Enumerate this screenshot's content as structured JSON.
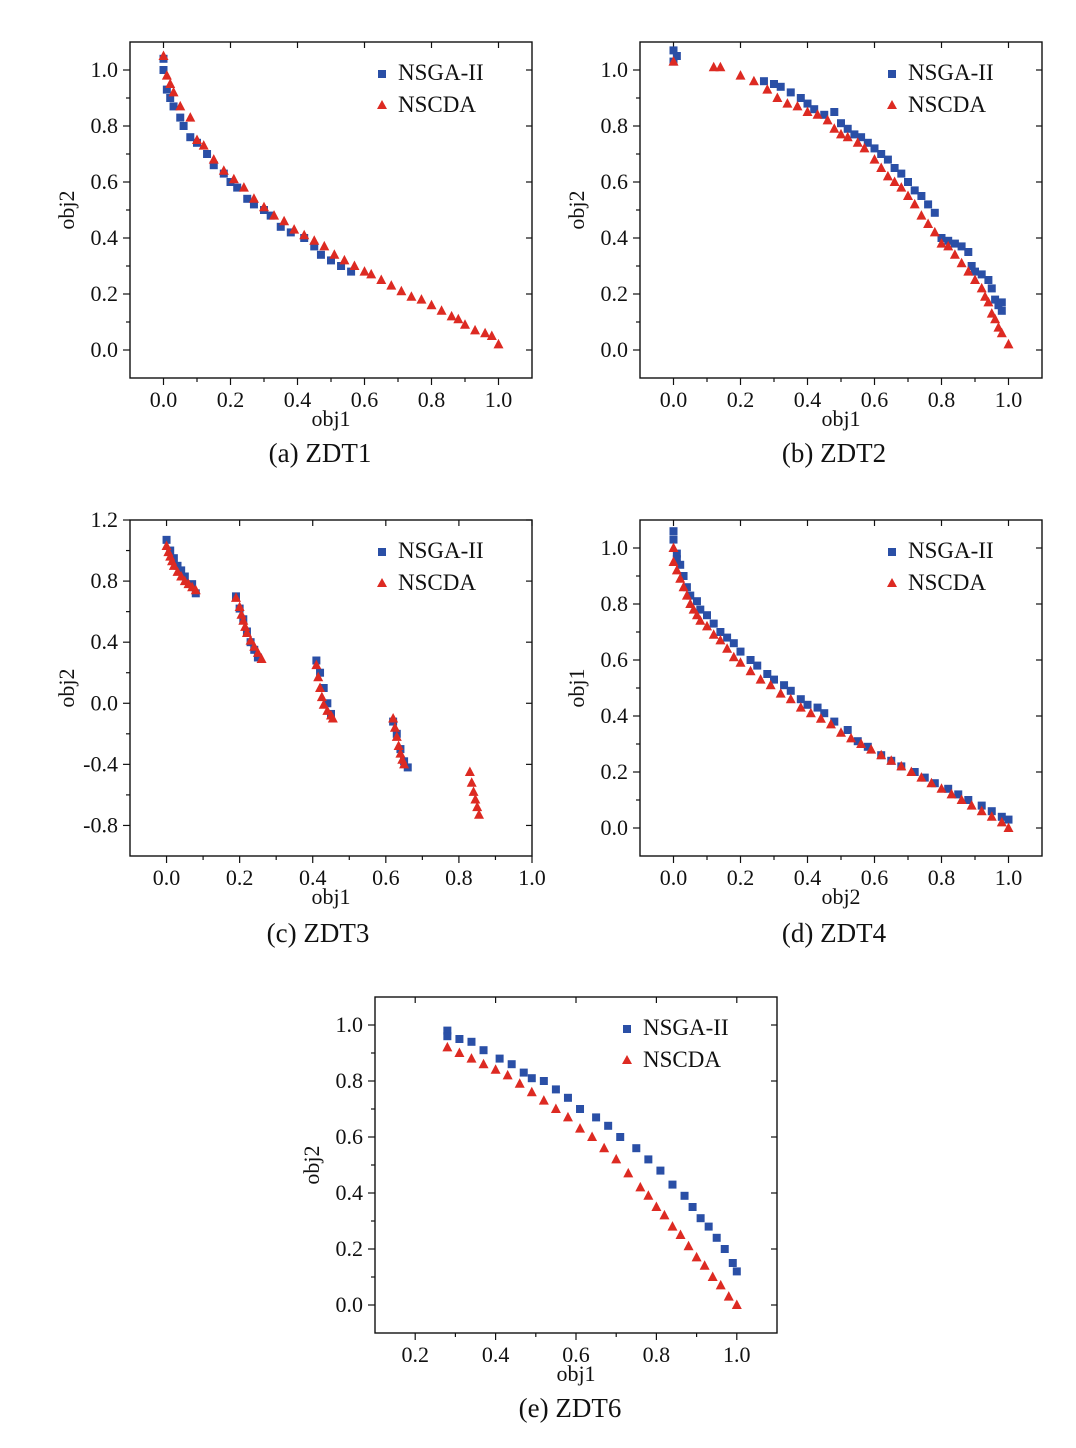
{
  "colors": {
    "nsga": "#2a4fa6",
    "nscda": "#dd2a22"
  },
  "chart_data": [
    {
      "id": "zdt1",
      "type": "scatter",
      "caption": "(a) ZDT1",
      "xlabel": "obj1",
      "ylabel": "obj2",
      "xlim": [
        -0.1,
        1.1
      ],
      "ylim": [
        -0.1,
        1.1
      ],
      "xticks": [
        "0.0",
        "0.2",
        "0.4",
        "0.6",
        "0.8",
        "1.0"
      ],
      "yticks": [
        "0.0",
        "0.2",
        "0.4",
        "0.6",
        "0.8",
        "1.0"
      ],
      "legend": [
        "NSGA-II",
        "NSCDA"
      ],
      "legend_position": "top-right",
      "series": [
        {
          "name": "NSGA-II",
          "marker": "square",
          "color": "#2a4fa6",
          "x": [
            0.0,
            0.0,
            0.01,
            0.02,
            0.03,
            0.05,
            0.06,
            0.08,
            0.1,
            0.13,
            0.15,
            0.18,
            0.2,
            0.22,
            0.25,
            0.27,
            0.3,
            0.32,
            0.35,
            0.38,
            0.42,
            0.45,
            0.47,
            0.5,
            0.53,
            0.56
          ],
          "y": [
            1.04,
            1.0,
            0.93,
            0.9,
            0.87,
            0.83,
            0.8,
            0.76,
            0.74,
            0.7,
            0.66,
            0.63,
            0.6,
            0.58,
            0.54,
            0.52,
            0.5,
            0.48,
            0.44,
            0.42,
            0.4,
            0.37,
            0.34,
            0.32,
            0.3,
            0.28
          ]
        },
        {
          "name": "NSCDA",
          "marker": "triangle",
          "color": "#dd2a22",
          "x": [
            0.0,
            0.01,
            0.02,
            0.03,
            0.05,
            0.08,
            0.1,
            0.12,
            0.15,
            0.18,
            0.21,
            0.24,
            0.27,
            0.3,
            0.33,
            0.36,
            0.39,
            0.42,
            0.45,
            0.48,
            0.51,
            0.54,
            0.57,
            0.6,
            0.62,
            0.65,
            0.68,
            0.71,
            0.74,
            0.77,
            0.8,
            0.83,
            0.86,
            0.88,
            0.9,
            0.93,
            0.96,
            0.98,
            1.0
          ],
          "y": [
            1.05,
            0.98,
            0.95,
            0.92,
            0.87,
            0.83,
            0.75,
            0.73,
            0.68,
            0.64,
            0.61,
            0.58,
            0.54,
            0.51,
            0.48,
            0.46,
            0.43,
            0.41,
            0.39,
            0.37,
            0.34,
            0.32,
            0.3,
            0.28,
            0.27,
            0.25,
            0.23,
            0.21,
            0.19,
            0.18,
            0.16,
            0.14,
            0.12,
            0.11,
            0.09,
            0.07,
            0.06,
            0.05,
            0.02
          ]
        }
      ]
    },
    {
      "id": "zdt2",
      "type": "scatter",
      "caption": "(b) ZDT2",
      "xlabel": "obj1",
      "ylabel": "obj2",
      "xlim": [
        -0.1,
        1.1
      ],
      "ylim": [
        -0.1,
        1.1
      ],
      "xticks": [
        "0.0",
        "0.2",
        "0.4",
        "0.6",
        "0.8",
        "1.0"
      ],
      "yticks": [
        "0.0",
        "0.2",
        "0.4",
        "0.6",
        "0.8",
        "1.0"
      ],
      "legend": [
        "NSGA-II",
        "NSCDA"
      ],
      "legend_position": "top-right",
      "series": [
        {
          "name": "NSGA-II",
          "marker": "square",
          "color": "#2a4fa6",
          "x": [
            0.0,
            0.01,
            0.0,
            0.27,
            0.3,
            0.32,
            0.35,
            0.38,
            0.4,
            0.42,
            0.45,
            0.48,
            0.5,
            0.52,
            0.54,
            0.56,
            0.58,
            0.6,
            0.62,
            0.64,
            0.66,
            0.68,
            0.7,
            0.72,
            0.74,
            0.76,
            0.78,
            0.8,
            0.82,
            0.84,
            0.86,
            0.88,
            0.89,
            0.9,
            0.92,
            0.94,
            0.95,
            0.96,
            0.97,
            0.98,
            0.98
          ],
          "y": [
            1.07,
            1.05,
            1.03,
            0.96,
            0.95,
            0.94,
            0.92,
            0.9,
            0.88,
            0.86,
            0.84,
            0.85,
            0.81,
            0.79,
            0.77,
            0.76,
            0.74,
            0.72,
            0.7,
            0.68,
            0.65,
            0.63,
            0.6,
            0.57,
            0.55,
            0.52,
            0.49,
            0.4,
            0.39,
            0.38,
            0.37,
            0.35,
            0.3,
            0.28,
            0.27,
            0.25,
            0.22,
            0.18,
            0.16,
            0.14,
            0.17
          ]
        },
        {
          "name": "NSCDA",
          "marker": "triangle",
          "color": "#dd2a22",
          "x": [
            0.0,
            0.12,
            0.14,
            0.2,
            0.24,
            0.28,
            0.31,
            0.34,
            0.37,
            0.4,
            0.43,
            0.46,
            0.48,
            0.5,
            0.52,
            0.55,
            0.57,
            0.6,
            0.62,
            0.64,
            0.66,
            0.68,
            0.7,
            0.72,
            0.74,
            0.76,
            0.78,
            0.8,
            0.82,
            0.84,
            0.86,
            0.88,
            0.9,
            0.92,
            0.93,
            0.94,
            0.95,
            0.96,
            0.97,
            0.98,
            1.0
          ],
          "y": [
            1.03,
            1.01,
            1.01,
            0.98,
            0.96,
            0.93,
            0.9,
            0.88,
            0.87,
            0.85,
            0.84,
            0.82,
            0.79,
            0.77,
            0.76,
            0.74,
            0.72,
            0.68,
            0.65,
            0.62,
            0.6,
            0.58,
            0.55,
            0.52,
            0.48,
            0.45,
            0.42,
            0.38,
            0.37,
            0.34,
            0.31,
            0.28,
            0.25,
            0.22,
            0.19,
            0.17,
            0.13,
            0.11,
            0.08,
            0.06,
            0.02
          ]
        }
      ]
    },
    {
      "id": "zdt3",
      "type": "scatter",
      "caption": "(c) ZDT3",
      "xlabel": "obj1",
      "ylabel": "obj2",
      "xlim": [
        -0.1,
        1.0
      ],
      "ylim": [
        -1.0,
        1.2
      ],
      "xticks": [
        "0.0",
        "0.2",
        "0.4",
        "0.6",
        "0.8",
        "1.0"
      ],
      "yticks": [
        "-0.8",
        "-0.4",
        "0.0",
        "0.4",
        "0.8",
        "1.2"
      ],
      "legend": [
        "NSGA-II",
        "NSCDA"
      ],
      "legend_position": "top-right",
      "series": [
        {
          "name": "NSGA-II",
          "marker": "square",
          "color": "#2a4fa6",
          "x": [
            0.0,
            0.01,
            0.02,
            0.03,
            0.04,
            0.05,
            0.07,
            0.08,
            0.19,
            0.2,
            0.21,
            0.22,
            0.23,
            0.24,
            0.25,
            0.41,
            0.42,
            0.43,
            0.44,
            0.45,
            0.62,
            0.63,
            0.64,
            0.65,
            0.66
          ],
          "y": [
            1.07,
            1.0,
            0.95,
            0.9,
            0.87,
            0.83,
            0.78,
            0.72,
            0.7,
            0.62,
            0.55,
            0.47,
            0.4,
            0.35,
            0.3,
            0.28,
            0.2,
            0.1,
            0.0,
            -0.07,
            -0.12,
            -0.2,
            -0.3,
            -0.38,
            -0.42
          ]
        },
        {
          "name": "NSCDA",
          "marker": "triangle",
          "color": "#dd2a22",
          "x": [
            0.0,
            0.005,
            0.01,
            0.015,
            0.02,
            0.03,
            0.04,
            0.05,
            0.06,
            0.07,
            0.08,
            0.19,
            0.2,
            0.205,
            0.21,
            0.215,
            0.22,
            0.23,
            0.24,
            0.25,
            0.26,
            0.41,
            0.415,
            0.42,
            0.425,
            0.43,
            0.44,
            0.45,
            0.455,
            0.62,
            0.625,
            0.63,
            0.635,
            0.64,
            0.645,
            0.65,
            0.83,
            0.835,
            0.84,
            0.845,
            0.85,
            0.855
          ],
          "y": [
            1.03,
            0.99,
            0.96,
            0.93,
            0.9,
            0.86,
            0.83,
            0.8,
            0.78,
            0.76,
            0.74,
            0.69,
            0.63,
            0.58,
            0.54,
            0.5,
            0.46,
            0.41,
            0.37,
            0.33,
            0.29,
            0.25,
            0.17,
            0.1,
            0.04,
            -0.01,
            -0.05,
            -0.08,
            -0.1,
            -0.1,
            -0.16,
            -0.22,
            -0.28,
            -0.33,
            -0.37,
            -0.4,
            -0.45,
            -0.52,
            -0.58,
            -0.63,
            -0.68,
            -0.73
          ]
        }
      ]
    },
    {
      "id": "zdt4",
      "type": "scatter",
      "caption": "(d) ZDT4",
      "xlabel": "obj2",
      "ylabel": "obj1",
      "xlim": [
        -0.1,
        1.1
      ],
      "ylim": [
        -0.1,
        1.1
      ],
      "xticks": [
        "0.0",
        "0.2",
        "0.4",
        "0.6",
        "0.8",
        "1.0"
      ],
      "yticks": [
        "0.0",
        "0.2",
        "0.4",
        "0.6",
        "0.8",
        "1.0"
      ],
      "legend": [
        "NSGA-II",
        "NSCDA"
      ],
      "legend_position": "top-right",
      "series": [
        {
          "name": "NSGA-II",
          "marker": "square",
          "color": "#2a4fa6",
          "x": [
            0.0,
            0.0,
            0.01,
            0.01,
            0.02,
            0.03,
            0.04,
            0.05,
            0.07,
            0.08,
            0.1,
            0.12,
            0.14,
            0.16,
            0.18,
            0.2,
            0.23,
            0.25,
            0.28,
            0.3,
            0.33,
            0.35,
            0.38,
            0.4,
            0.43,
            0.45,
            0.48,
            0.52,
            0.55,
            0.58,
            0.62,
            0.65,
            0.68,
            0.72,
            0.75,
            0.78,
            0.82,
            0.85,
            0.88,
            0.92,
            0.95,
            0.98,
            1.0
          ],
          "y": [
            1.06,
            1.03,
            0.98,
            0.96,
            0.94,
            0.9,
            0.86,
            0.83,
            0.81,
            0.78,
            0.76,
            0.73,
            0.7,
            0.68,
            0.66,
            0.63,
            0.6,
            0.58,
            0.55,
            0.53,
            0.51,
            0.49,
            0.46,
            0.44,
            0.43,
            0.41,
            0.38,
            0.35,
            0.31,
            0.29,
            0.26,
            0.24,
            0.22,
            0.2,
            0.18,
            0.16,
            0.14,
            0.12,
            0.1,
            0.08,
            0.06,
            0.04,
            0.03
          ]
        },
        {
          "name": "NSCDA",
          "marker": "triangle",
          "color": "#dd2a22",
          "x": [
            0.0,
            0.0,
            0.01,
            0.02,
            0.03,
            0.04,
            0.05,
            0.06,
            0.07,
            0.08,
            0.1,
            0.12,
            0.14,
            0.16,
            0.18,
            0.2,
            0.23,
            0.26,
            0.29,
            0.32,
            0.35,
            0.38,
            0.41,
            0.44,
            0.47,
            0.5,
            0.53,
            0.56,
            0.59,
            0.62,
            0.65,
            0.68,
            0.71,
            0.74,
            0.77,
            0.8,
            0.83,
            0.86,
            0.89,
            0.92,
            0.95,
            0.98,
            1.0
          ],
          "y": [
            1.0,
            0.95,
            0.92,
            0.89,
            0.86,
            0.83,
            0.8,
            0.78,
            0.76,
            0.74,
            0.72,
            0.69,
            0.67,
            0.64,
            0.61,
            0.59,
            0.56,
            0.53,
            0.51,
            0.48,
            0.46,
            0.43,
            0.41,
            0.39,
            0.37,
            0.34,
            0.32,
            0.3,
            0.28,
            0.26,
            0.24,
            0.22,
            0.2,
            0.18,
            0.16,
            0.14,
            0.12,
            0.1,
            0.08,
            0.06,
            0.04,
            0.02,
            0.0
          ]
        }
      ]
    },
    {
      "id": "zdt6",
      "type": "scatter",
      "caption": "(e) ZDT6",
      "xlabel": "obj1",
      "ylabel": "obj2",
      "xlim": [
        0.1,
        1.1
      ],
      "ylim": [
        -0.1,
        1.1
      ],
      "xticks": [
        "0.2",
        "0.4",
        "0.6",
        "0.8",
        "1.0"
      ],
      "yticks": [
        "0.0",
        "0.2",
        "0.4",
        "0.6",
        "0.8",
        "1.0"
      ],
      "legend": [
        "NSGA-II",
        "NSCDA"
      ],
      "legend_position": "top-right",
      "series": [
        {
          "name": "NSGA-II",
          "marker": "square",
          "color": "#2a4fa6",
          "x": [
            0.28,
            0.28,
            0.31,
            0.34,
            0.37,
            0.41,
            0.44,
            0.47,
            0.49,
            0.52,
            0.55,
            0.58,
            0.61,
            0.65,
            0.68,
            0.71,
            0.75,
            0.78,
            0.81,
            0.84,
            0.87,
            0.89,
            0.91,
            0.93,
            0.95,
            0.97,
            0.99,
            1.0
          ],
          "y": [
            0.98,
            0.96,
            0.95,
            0.94,
            0.91,
            0.88,
            0.86,
            0.83,
            0.81,
            0.8,
            0.77,
            0.74,
            0.7,
            0.67,
            0.64,
            0.6,
            0.56,
            0.52,
            0.48,
            0.43,
            0.39,
            0.35,
            0.31,
            0.28,
            0.24,
            0.2,
            0.15,
            0.12
          ]
        },
        {
          "name": "NSCDA",
          "marker": "triangle",
          "color": "#dd2a22",
          "x": [
            0.28,
            0.31,
            0.34,
            0.37,
            0.4,
            0.43,
            0.46,
            0.49,
            0.52,
            0.55,
            0.58,
            0.61,
            0.64,
            0.67,
            0.7,
            0.73,
            0.76,
            0.78,
            0.8,
            0.82,
            0.84,
            0.86,
            0.88,
            0.9,
            0.92,
            0.94,
            0.96,
            0.98,
            1.0
          ],
          "y": [
            0.92,
            0.9,
            0.88,
            0.86,
            0.84,
            0.82,
            0.79,
            0.76,
            0.73,
            0.7,
            0.67,
            0.63,
            0.6,
            0.56,
            0.52,
            0.47,
            0.42,
            0.39,
            0.35,
            0.32,
            0.28,
            0.25,
            0.21,
            0.17,
            0.14,
            0.1,
            0.07,
            0.03,
            0.0
          ]
        }
      ]
    }
  ]
}
